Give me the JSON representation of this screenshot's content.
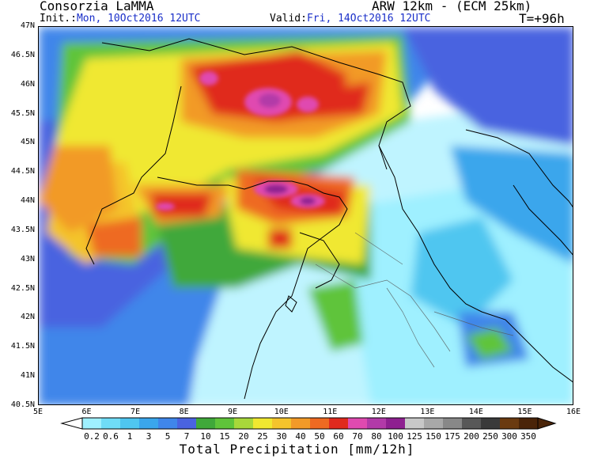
{
  "header": {
    "left_title": "Consorzia LaMMA",
    "right_title": "ARW 12km - (ECM 25km)",
    "init_label": "Init.:",
    "init_value": "Mon, 10Oct2016 12UTC",
    "valid_label": "Valid:",
    "valid_value": "Fri, 14Oct2016 12UTC",
    "lead_time": "T=+96h"
  },
  "map": {
    "lat_ticks": [
      "47N",
      "46.5N",
      "46N",
      "45.5N",
      "45N",
      "44.5N",
      "44N",
      "43.5N",
      "43N",
      "42.5N",
      "42N",
      "41.5N",
      "41N",
      "40.5N"
    ],
    "lon_ticks": [
      "5E",
      "6E",
      "7E",
      "8E",
      "9E",
      "10E",
      "11E",
      "12E",
      "13E",
      "14E",
      "15E",
      "16E"
    ]
  },
  "colorbar": {
    "levels": [
      "0.2",
      "0.6",
      "1",
      "3",
      "5",
      "7",
      "10",
      "15",
      "20",
      "25",
      "30",
      "40",
      "50",
      "60",
      "70",
      "80",
      "100",
      "125",
      "150",
      "175",
      "200",
      "250",
      "300",
      "350"
    ],
    "colors": [
      "#9ff0ff",
      "#6fdcf7",
      "#4fc6f0",
      "#3aa6ec",
      "#3f86ea",
      "#4a63e0",
      "#3fa83a",
      "#5fc43a",
      "#a8d83a",
      "#f0e830",
      "#f4c42c",
      "#f29a28",
      "#ee6a22",
      "#e02a1e",
      "#e04ab0",
      "#b23aa8",
      "#8e2090",
      "#c8c8c8",
      "#a8a8a8",
      "#888888",
      "#585858",
      "#3a3a3a",
      "#6a3a10",
      "#4a2408"
    ],
    "low_arrow_color": "#ffffff",
    "high_arrow_color": "#4a2408"
  },
  "footer": {
    "label": "Total Precipitation [mm/12h]"
  }
}
